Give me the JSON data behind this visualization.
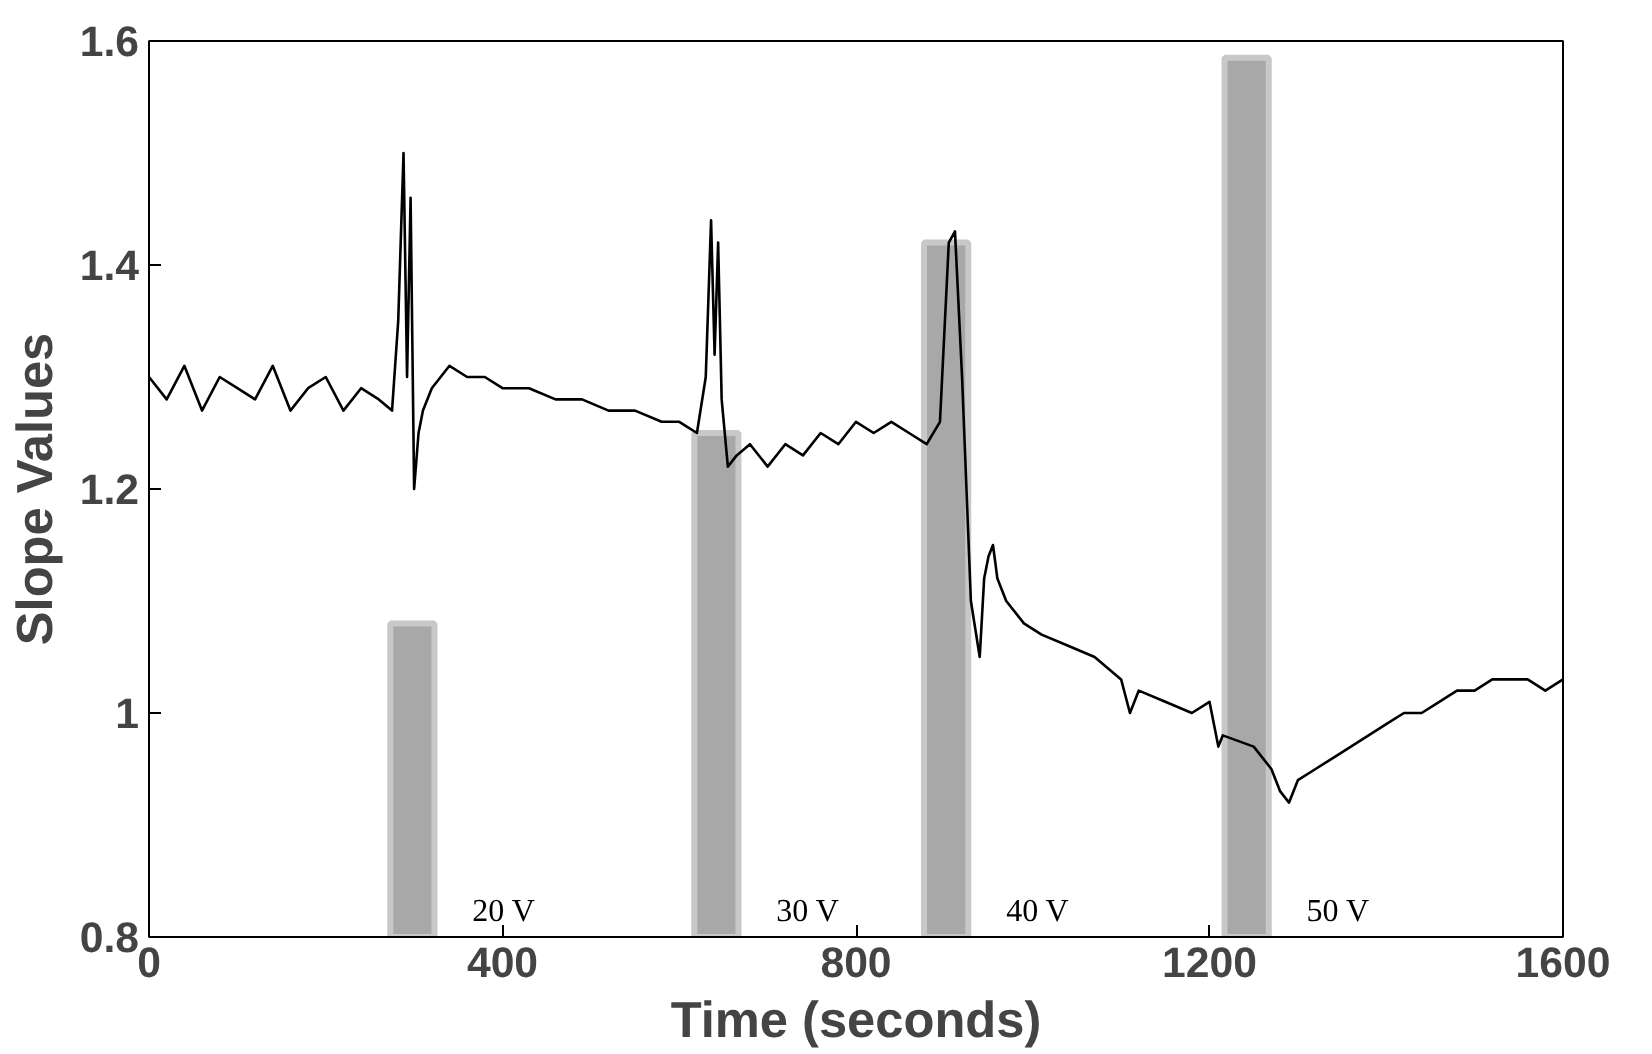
{
  "chart_data": {
    "type": "line",
    "xlabel": "Time (seconds)",
    "ylabel": "Slope Values",
    "xlim": [
      0,
      1600
    ],
    "ylim": [
      0.8,
      1.6
    ],
    "xticks": [
      0,
      400,
      800,
      1200,
      1600
    ],
    "yticks": [
      {
        "value": 0.8,
        "label": "0.8"
      },
      {
        "value": 1,
        "label": "1"
      },
      {
        "value": 1.2,
        "label": "1.2"
      },
      {
        "value": 1.4,
        "label": "1.4"
      },
      {
        "value": 1.6,
        "label": "1.6"
      }
    ],
    "grid": false,
    "series": [
      {
        "type": "bar",
        "color": "#a8a8a8",
        "x": [
          298,
          642,
          902,
          1242
        ],
        "base": [
          0.8,
          0.8,
          0.8,
          0.8
        ],
        "values": [
          0.28,
          0.45,
          0.62,
          0.785
        ]
      },
      {
        "color": "#000000",
        "x": [
          0,
          20,
          40,
          60,
          80,
          100,
          120,
          140,
          160,
          180,
          200,
          220,
          240,
          260,
          275,
          282,
          288,
          292,
          296,
          300,
          305,
          310,
          320,
          340,
          360,
          380,
          400,
          430,
          460,
          490,
          520,
          550,
          580,
          600,
          620,
          630,
          636,
          640,
          644,
          648,
          655,
          665,
          680,
          700,
          720,
          740,
          760,
          780,
          800,
          820,
          840,
          860,
          880,
          895,
          905,
          912,
          920,
          930,
          940,
          945,
          950,
          955,
          960,
          970,
          990,
          1010,
          1040,
          1070,
          1100,
          1110,
          1120,
          1150,
          1180,
          1200,
          1210,
          1215,
          1250,
          1270,
          1280,
          1290,
          1300,
          1320,
          1340,
          1360,
          1380,
          1400,
          1420,
          1440,
          1460,
          1480,
          1500,
          1520,
          1540,
          1560,
          1580,
          1600
        ],
        "values": [
          1.3,
          1.28,
          1.31,
          1.27,
          1.3,
          1.29,
          1.28,
          1.31,
          1.27,
          1.29,
          1.3,
          1.27,
          1.29,
          1.28,
          1.27,
          1.35,
          1.5,
          1.3,
          1.46,
          1.2,
          1.25,
          1.27,
          1.29,
          1.31,
          1.3,
          1.3,
          1.29,
          1.29,
          1.28,
          1.28,
          1.27,
          1.27,
          1.26,
          1.26,
          1.25,
          1.3,
          1.44,
          1.32,
          1.42,
          1.28,
          1.22,
          1.23,
          1.24,
          1.22,
          1.24,
          1.23,
          1.25,
          1.24,
          1.26,
          1.25,
          1.26,
          1.25,
          1.24,
          1.26,
          1.42,
          1.43,
          1.3,
          1.1,
          1.05,
          1.12,
          1.14,
          1.15,
          1.12,
          1.1,
          1.08,
          1.07,
          1.06,
          1.05,
          1.03,
          1.0,
          1.02,
          1.01,
          1.0,
          1.01,
          0.97,
          0.98,
          0.97,
          0.95,
          0.93,
          0.92,
          0.94,
          0.95,
          0.96,
          0.97,
          0.98,
          0.99,
          1.0,
          1.0,
          1.01,
          1.02,
          1.02,
          1.03,
          1.03,
          1.03,
          1.02,
          1.03
        ]
      }
    ],
    "annotations": [
      "20 V",
      "30 V",
      "40 V",
      "50 V"
    ]
  }
}
